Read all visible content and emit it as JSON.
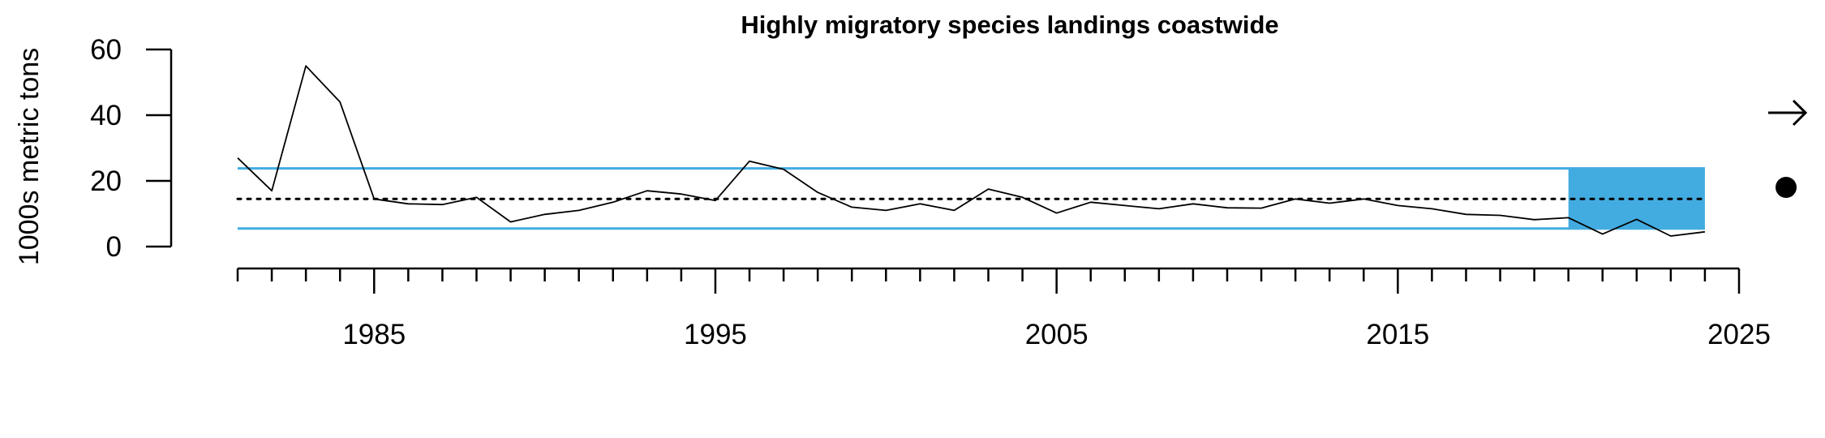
{
  "chart_data": {
    "type": "line",
    "title": "Highly migratory species landings coastwide",
    "xlabel": "",
    "ylabel": "1000s metric tons",
    "xlim": [
      1981,
      2025
    ],
    "ylim": [
      0,
      60
    ],
    "x_ticks_major": [
      1985,
      1995,
      2005,
      2015,
      2025
    ],
    "y_ticks": [
      0,
      20,
      40,
      60
    ],
    "x": [
      1981,
      1982,
      1983,
      1984,
      1985,
      1986,
      1987,
      1988,
      1989,
      1990,
      1991,
      1992,
      1993,
      1994,
      1995,
      1996,
      1997,
      1998,
      1999,
      2000,
      2001,
      2002,
      2003,
      2004,
      2005,
      2006,
      2007,
      2008,
      2009,
      2010,
      2011,
      2012,
      2013,
      2014,
      2015,
      2016,
      2017,
      2018,
      2019,
      2020,
      2021,
      2022,
      2023,
      2024
    ],
    "series": [
      {
        "values": [
          27,
          17,
          55,
          44,
          14.5,
          13,
          12.8,
          15,
          7.5,
          9.8,
          11,
          13.5,
          17,
          16,
          14,
          26,
          23.5,
          16.5,
          12,
          11,
          13,
          11,
          17.5,
          15,
          10.2,
          13.5,
          12.5,
          11.5,
          13,
          11.8,
          11.7,
          14.5,
          13.2,
          14.5,
          12.5,
          11.5,
          9.8,
          9.5,
          8.2,
          8.8,
          3.8,
          8.3,
          3.2,
          4.5
        ]
      }
    ],
    "mean": 14.5,
    "upper_sd": 23.8,
    "lower_sd": 5.5,
    "highlight_period": [
      2020,
      2024
    ],
    "trend_indicator": "right-arrow",
    "status_indicator": "filled-circle",
    "colors": {
      "line": "#000000",
      "sd_lines": "#42ace1",
      "highlight_fill": "#42ace1",
      "mean_line": "#000000"
    },
    "grid": false,
    "legend": "none"
  }
}
